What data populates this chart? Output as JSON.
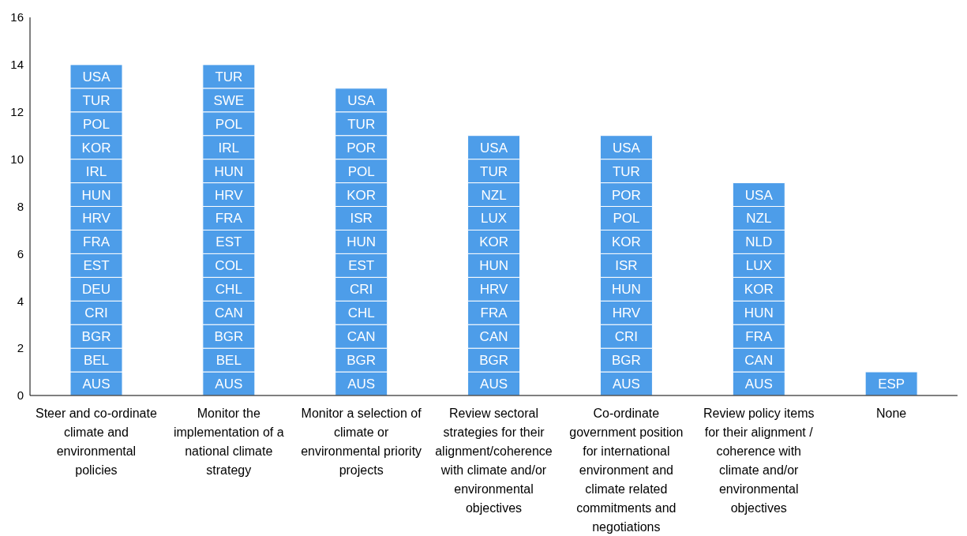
{
  "chart_data": {
    "type": "bar",
    "stacked": true,
    "categories": [
      "Steer and co-ordinate climate and environmental policies",
      "Monitor the implementation of a national climate strategy",
      "Monitor a selection of climate or environmental priority projects",
      "Review sectoral strategies for their alignment/coherence with climate and/or environmental objectives",
      "Co-ordinate government position for international environment and climate related commitments and negotiations",
      "Review policy items for their alignment / coherence with climate and/or environmental objectives",
      "None"
    ],
    "ylim": [
      0,
      16
    ],
    "yticks": [
      0,
      2,
      4,
      6,
      8,
      10,
      12,
      14,
      16
    ],
    "series": [
      {
        "color": "#4d9de9",
        "values": [
          1,
          1,
          1,
          1,
          1,
          1,
          1
        ],
        "value_labels": [
          "AUS",
          "AUS",
          "AUS",
          "AUS",
          "AUS",
          "AUS",
          "ESP"
        ]
      },
      {
        "color": "#4d9de9",
        "values": [
          1,
          1,
          1,
          1,
          1,
          1,
          null
        ],
        "value_labels": [
          "BEL",
          "BEL",
          "BGR",
          "BGR",
          "BGR",
          "CAN",
          null
        ]
      },
      {
        "color": "#4d9de9",
        "values": [
          1,
          1,
          1,
          1,
          1,
          1,
          null
        ],
        "value_labels": [
          "BGR",
          "BGR",
          "CAN",
          "CAN",
          "CRI",
          "FRA",
          null
        ]
      },
      {
        "color": "#4d9de9",
        "values": [
          1,
          1,
          1,
          1,
          1,
          1,
          null
        ],
        "value_labels": [
          "CRI",
          "CAN",
          "CHL",
          "FRA",
          "HRV",
          "HUN",
          null
        ]
      },
      {
        "color": "#4d9de9",
        "values": [
          1,
          1,
          1,
          1,
          1,
          1,
          null
        ],
        "value_labels": [
          "DEU",
          "CHL",
          "CRI",
          "HRV",
          "HUN",
          "KOR",
          null
        ]
      },
      {
        "color": "#4d9de9",
        "values": [
          1,
          1,
          1,
          1,
          1,
          1,
          null
        ],
        "value_labels": [
          "EST",
          "COL",
          "EST",
          "HUN",
          "ISR",
          "LUX",
          null
        ]
      },
      {
        "color": "#4d9de9",
        "values": [
          1,
          1,
          1,
          1,
          1,
          1,
          null
        ],
        "value_labels": [
          "FRA",
          "EST",
          "HUN",
          "KOR",
          "KOR",
          "NLD",
          null
        ]
      },
      {
        "color": "#4d9de9",
        "values": [
          1,
          1,
          1,
          1,
          1,
          1,
          null
        ],
        "value_labels": [
          "HRV",
          "FRA",
          "ISR",
          "LUX",
          "POL",
          "NZL",
          null
        ]
      },
      {
        "color": "#4d9de9",
        "values": [
          1,
          1,
          1,
          1,
          1,
          1,
          null
        ],
        "value_labels": [
          "HUN",
          "HRV",
          "KOR",
          "NZL",
          "POR",
          "USA",
          null
        ]
      },
      {
        "color": "#4d9de9",
        "values": [
          1,
          1,
          1,
          1,
          1,
          null,
          null
        ],
        "value_labels": [
          "IRL",
          "HUN",
          "POL",
          "TUR",
          "TUR",
          null,
          null
        ]
      },
      {
        "color": "#4d9de9",
        "values": [
          1,
          1,
          1,
          1,
          1,
          null,
          null
        ],
        "value_labels": [
          "KOR",
          "IRL",
          "POR",
          "USA",
          "USA",
          null,
          null
        ]
      },
      {
        "color": "#4d9de9",
        "values": [
          1,
          1,
          1,
          null,
          null,
          null,
          null
        ],
        "value_labels": [
          "POL",
          "POL",
          "TUR",
          null,
          null,
          null,
          null
        ]
      },
      {
        "color": "#4d9de9",
        "values": [
          1,
          1,
          1,
          null,
          null,
          null,
          null
        ],
        "value_labels": [
          "TUR",
          "SWE",
          "USA",
          null,
          null,
          null,
          null
        ]
      },
      {
        "color": "#4d9de9",
        "values": [
          1,
          1,
          null,
          null,
          null,
          null,
          null
        ],
        "value_labels": [
          "USA",
          "TUR",
          null,
          null,
          null,
          null,
          null
        ]
      }
    ]
  }
}
